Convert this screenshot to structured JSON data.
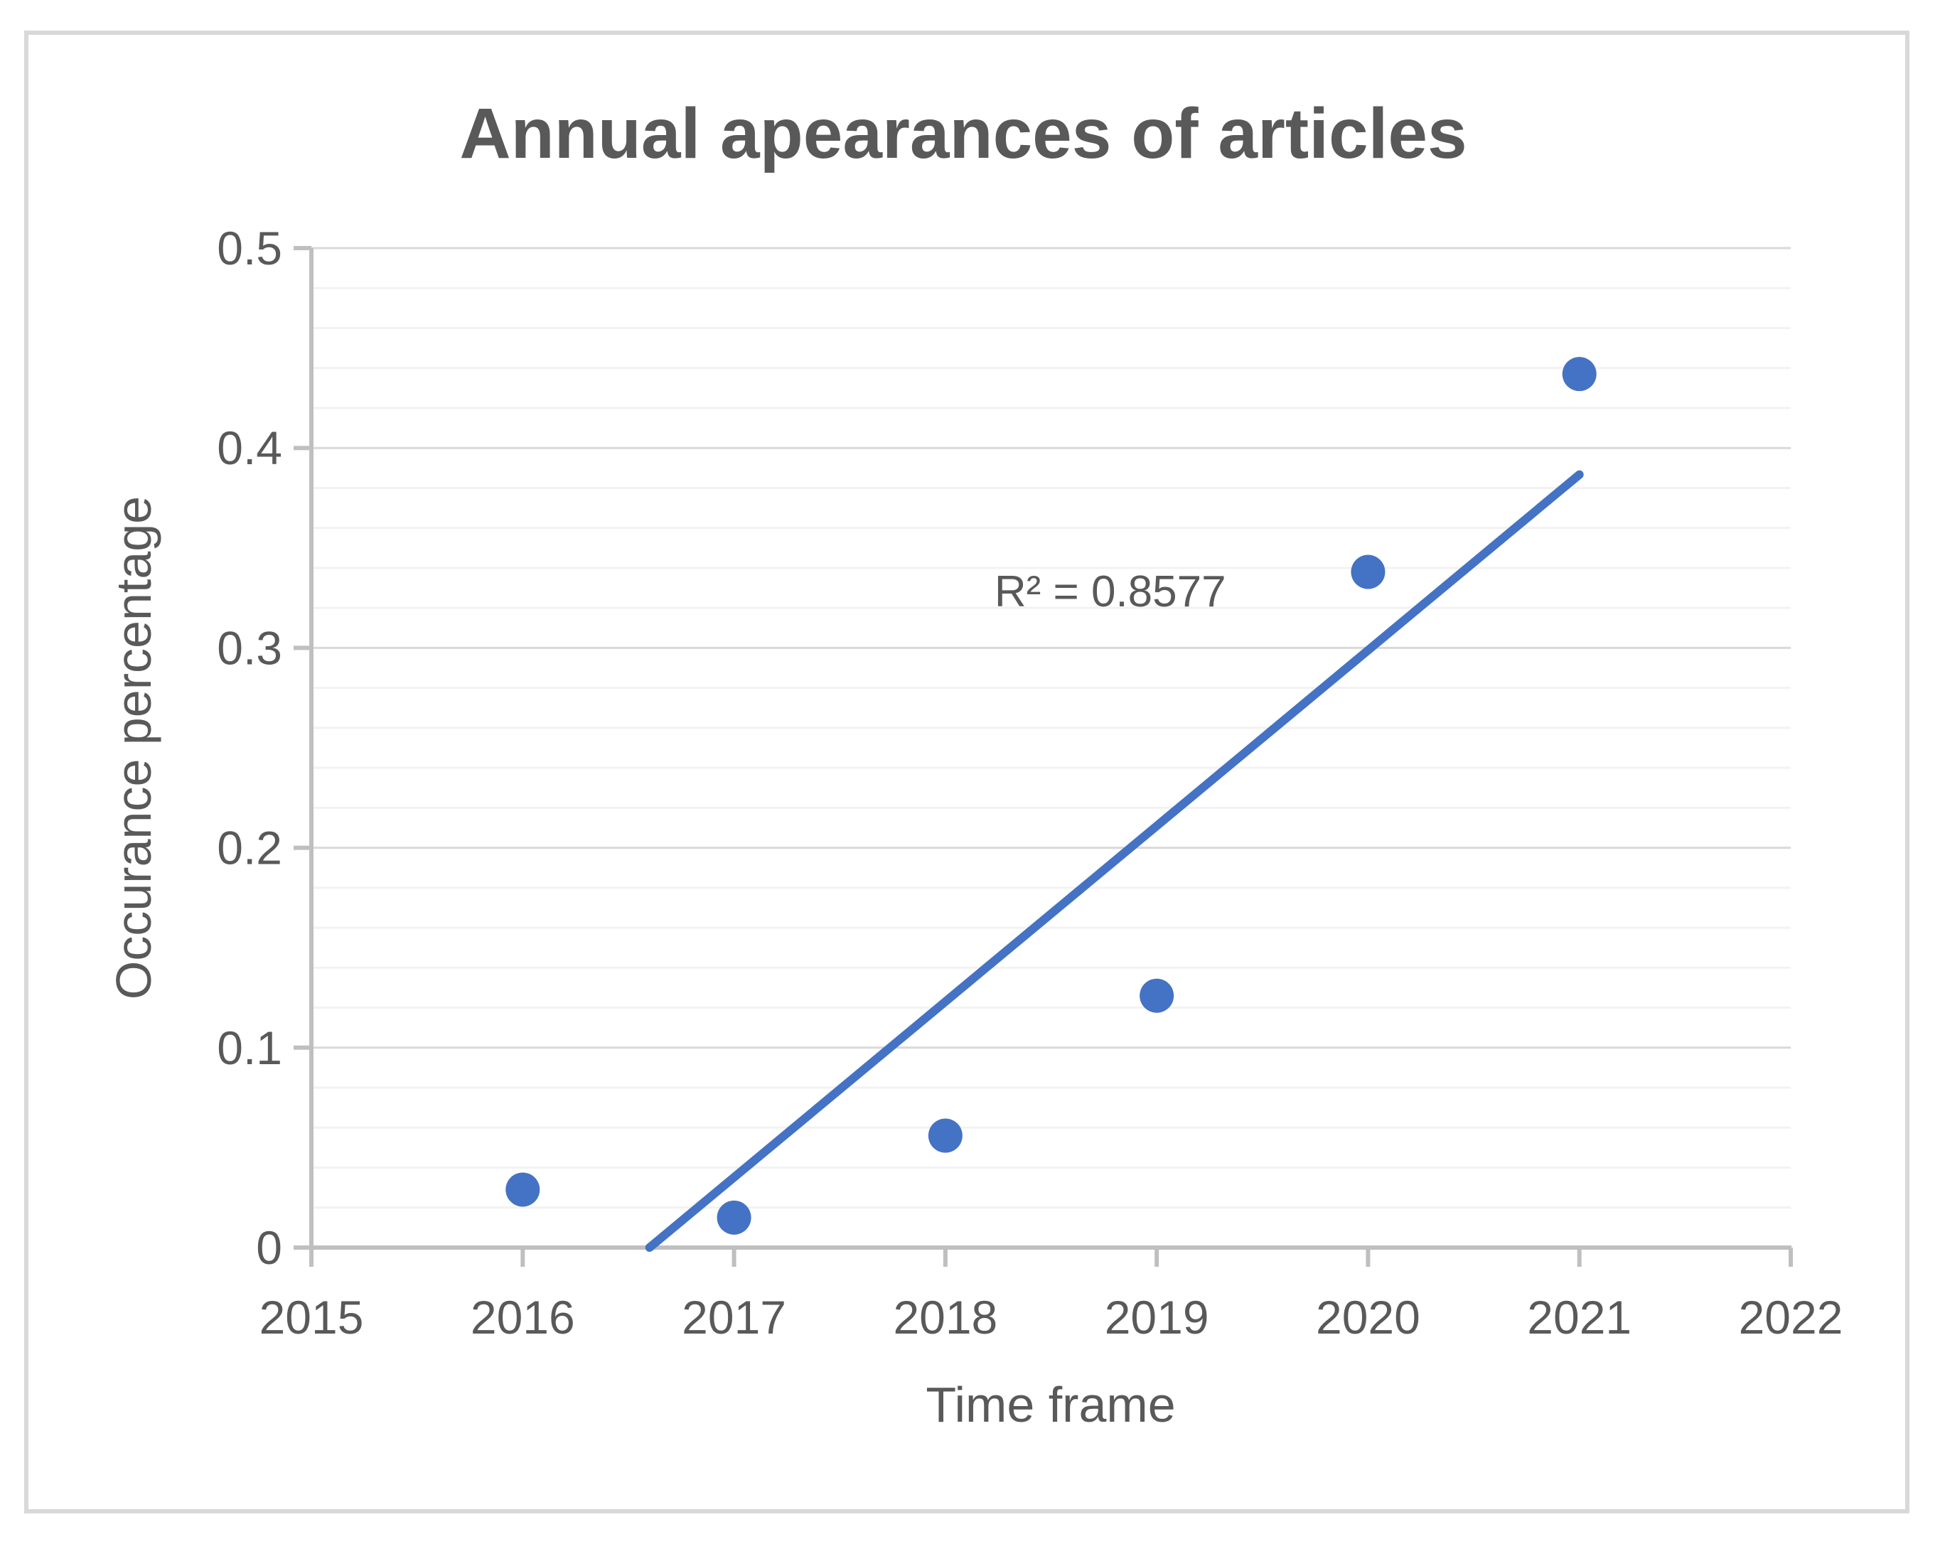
{
  "chart_data": {
    "type": "scatter",
    "title": "Annual apearances of articles",
    "xlabel": "Time frame",
    "ylabel": "Occurance percentage",
    "x": [
      2016,
      2017,
      2018,
      2019,
      2020,
      2021
    ],
    "y": [
      0.029,
      0.015,
      0.056,
      0.126,
      0.338,
      0.437
    ],
    "xlim": [
      2015,
      2022
    ],
    "ylim": [
      0,
      0.5
    ],
    "x_ticks": [
      "2015",
      "2016",
      "2017",
      "2018",
      "2019",
      "2020",
      "2021",
      "2022"
    ],
    "y_ticks": [
      "0",
      "0.1",
      "0.2",
      "0.3",
      "0.4",
      "0.5"
    ],
    "y_major_step": 0.1,
    "y_minor_step": 0.02,
    "grid": "horizontal-major-and-minor",
    "legend": "none",
    "trendline": {
      "x1": 2016.6,
      "y1": 0,
      "x2": 2021,
      "y2": 0.3867
    },
    "annotation": {
      "text": "R² = 0.8577",
      "x": 2018.78,
      "y": 0.328
    },
    "colors": {
      "marker": "#4472C4",
      "trendline": "#4472C4",
      "axis": "#BFBFBF",
      "grid_major": "#D9D9D9",
      "grid_minor": "#F2F2F2",
      "text": "#595959",
      "border": "#D9D9D9",
      "background": "#FFFFFF"
    },
    "marker_radius_px": 24
  }
}
